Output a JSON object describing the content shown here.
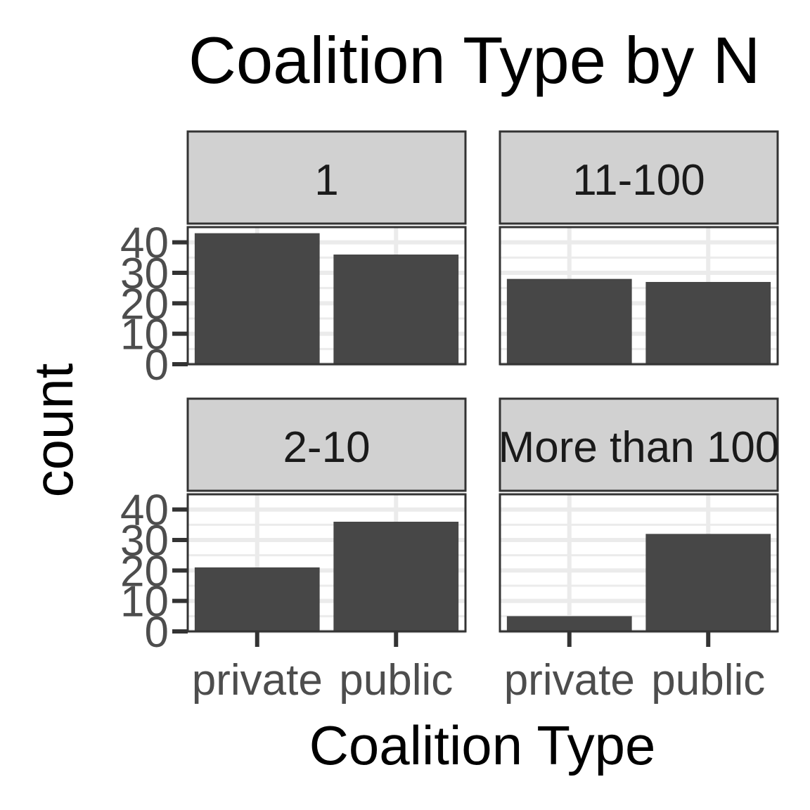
{
  "chart_data": {
    "type": "bar",
    "title": "Coalition Type by N",
    "xlabel": "Coalition Type",
    "ylabel": "count",
    "categories": [
      "private",
      "public"
    ],
    "y_ticks": [
      "0",
      "10",
      "20",
      "30",
      "40"
    ],
    "ylim": [
      0,
      45
    ],
    "grid": true,
    "bar_color": "#474747",
    "strip_color": "#d1d1d1",
    "facets": [
      {
        "label": "1",
        "values": [
          43,
          36
        ]
      },
      {
        "label": "11-100",
        "values": [
          28,
          27
        ]
      },
      {
        "label": "2-10",
        "values": [
          21,
          36
        ]
      },
      {
        "label": "More than 100",
        "values": [
          5,
          32
        ]
      }
    ]
  }
}
